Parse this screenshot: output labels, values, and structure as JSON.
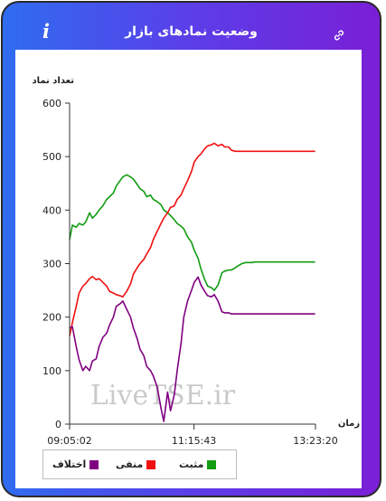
{
  "header": {
    "title": "وضعیت نمادهای بازار",
    "info_icon": "info-icon",
    "link_icon": "link-icon"
  },
  "colors": {
    "positive": "#119c11",
    "negative": "#f01010",
    "difference": "#800080",
    "axis": "#333333"
  },
  "legend": {
    "positive": "مثبت",
    "negative": "منفی",
    "difference": "اختلاف"
  },
  "watermark": "LiveTSE.ir",
  "chart_data": {
    "type": "line",
    "ylabel": "تعداد نماد",
    "xlabel": "زمان",
    "ylim": [
      0,
      600
    ],
    "yticks": [
      0,
      100,
      200,
      300,
      400,
      500,
      600
    ],
    "xlim": [
      "09:05:02",
      "13:23:20"
    ],
    "xticks": [
      "09:05:02",
      "11:15:43",
      "13:23:20"
    ],
    "x": [
      "09:05",
      "09:08",
      "09:12",
      "09:15",
      "09:19",
      "09:22",
      "09:26",
      "09:29",
      "09:33",
      "09:36",
      "09:40",
      "09:44",
      "09:47",
      "09:51",
      "09:54",
      "09:58",
      "10:01",
      "10:05",
      "10:09",
      "10:12",
      "10:16",
      "10:19",
      "10:23",
      "10:26",
      "10:30",
      "10:33",
      "10:37",
      "10:41",
      "10:44",
      "10:48",
      "10:51",
      "10:55",
      "10:58",
      "11:02",
      "11:05",
      "11:09",
      "11:13",
      "11:16",
      "11:20",
      "11:23",
      "11:27",
      "11:30",
      "11:34",
      "11:37",
      "11:41",
      "11:45",
      "11:48",
      "11:52",
      "11:55",
      "11:59",
      "12:02",
      "12:06",
      "12:10",
      "12:13",
      "12:17",
      "12:20",
      "12:24",
      "12:27",
      "12:31",
      "12:34",
      "12:38",
      "12:42",
      "12:45",
      "12:49",
      "12:52",
      "12:56",
      "12:59",
      "13:03",
      "13:06",
      "13:10",
      "13:14",
      "13:17",
      "13:23"
    ],
    "series": [
      {
        "name": "مثبت",
        "color": "#119c11",
        "values": [
          345,
          372,
          368,
          375,
          372,
          378,
          395,
          385,
          392,
          400,
          408,
          420,
          425,
          432,
          445,
          455,
          462,
          466,
          462,
          458,
          448,
          440,
          435,
          425,
          428,
          420,
          416,
          410,
          400,
          395,
          390,
          382,
          375,
          370,
          365,
          350,
          340,
          325,
          310,
          290,
          270,
          258,
          255,
          250,
          260,
          283,
          286,
          288,
          288,
          292,
          296,
          300,
          302,
          302,
          302,
          303,
          303,
          303,
          303,
          303,
          303,
          303,
          303,
          303,
          303,
          303,
          303,
          303,
          303,
          303,
          303,
          303,
          303
        ]
      },
      {
        "name": "منفی",
        "color": "#f01010",
        "values": [
          165,
          190,
          220,
          245,
          258,
          263,
          272,
          276,
          270,
          272,
          265,
          258,
          248,
          245,
          242,
          240,
          238,
          248,
          262,
          280,
          292,
          300,
          308,
          318,
          330,
          345,
          360,
          375,
          385,
          395,
          405,
          408,
          420,
          428,
          440,
          455,
          472,
          490,
          500,
          505,
          515,
          520,
          522,
          525,
          520,
          523,
          518,
          518,
          512,
          510,
          510,
          510,
          510,
          510,
          510,
          510,
          510,
          510,
          510,
          510,
          510,
          510,
          510,
          510,
          510,
          510,
          510,
          510,
          510,
          510,
          510,
          510,
          510
        ]
      },
      {
        "name": "اختلاف",
        "color": "#800080",
        "values": [
          180,
          182,
          145,
          120,
          100,
          108,
          100,
          118,
          122,
          145,
          162,
          170,
          185,
          200,
          220,
          225,
          230,
          215,
          200,
          180,
          160,
          140,
          128,
          108,
          100,
          90,
          70,
          30,
          5,
          60,
          25,
          55,
          100,
          150,
          200,
          230,
          250,
          265,
          275,
          260,
          248,
          240,
          238,
          242,
          230,
          210,
          208,
          208,
          206,
          206,
          206,
          206,
          206,
          206,
          206,
          206,
          206,
          206,
          206,
          206,
          206,
          206,
          206,
          206,
          206,
          206,
          206,
          206,
          206,
          206,
          206,
          206,
          206
        ]
      }
    ]
  }
}
